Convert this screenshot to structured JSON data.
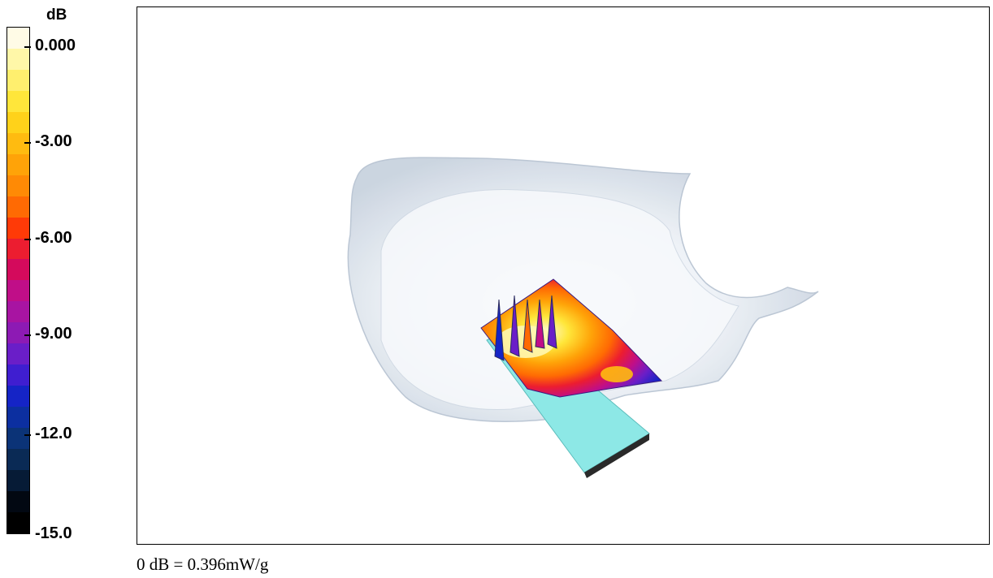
{
  "legend": {
    "unit": "dB",
    "ticks": [
      "0.000",
      "-3.00",
      "-6.00",
      "-9.00",
      "-12.0",
      "-15.0"
    ],
    "swatch_colors": [
      "#fffbe6",
      "#fff7a8",
      "#ffef6e",
      "#ffe63a",
      "#ffd21a",
      "#ffbb10",
      "#ffa308",
      "#ff8a05",
      "#ff6a03",
      "#ff3a07",
      "#ec1d30",
      "#d40a5c",
      "#c00e88",
      "#a814a2",
      "#8d1ab4",
      "#6a1ec8",
      "#3f1ed0",
      "#1524c6",
      "#0c2fa0",
      "#0b3377",
      "#0a2a55",
      "#061b36",
      "#020812",
      "#000000"
    ]
  },
  "viewport": {
    "description_colors": {
      "phantom_shell": "#d9e3ef",
      "phone_block": "#8de8e6",
      "phone_block_side": "#2a2a2a"
    }
  },
  "caption": "0 dB = 0.396mW/g"
}
